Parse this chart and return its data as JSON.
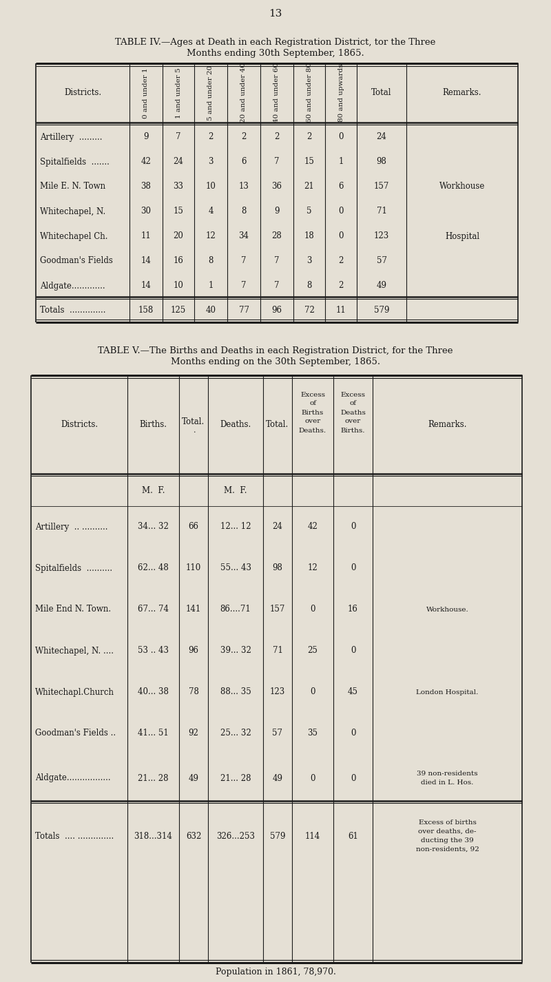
{
  "page_number": "13",
  "bg_color": "#e5e0d5",
  "text_color": "#1a1a1a",
  "table4": {
    "title_line1": "TABLE IV.—Ages at Death in each Registration District, tor the Three",
    "title_line2": "Months ending 30th September, 1865.",
    "col_headers": [
      "Districts.",
      "0 and\nunder 1",
      "1 and\nunder 5",
      "5 and\nunder 20",
      "20 and\nunder 40",
      "40 and\nunder 60",
      "60 and\nunder 80",
      "80 and\nupwards",
      "Total",
      "Remarks."
    ],
    "rows": [
      [
        "Artillery  .........",
        "9",
        "7",
        "2",
        "2",
        "2",
        "2",
        "0",
        "24",
        ""
      ],
      [
        "Spitalfields  .......",
        "42",
        "24",
        "3",
        "6",
        "7",
        "15",
        "1",
        "98",
        ""
      ],
      [
        "Mile E. N. Town",
        "38",
        "33",
        "10",
        "13",
        "36",
        "21",
        "6",
        "157",
        "Workhouse"
      ],
      [
        "Whitechapel, N.",
        "30",
        "15",
        "4",
        "8",
        "9",
        "5",
        "0",
        "71",
        ""
      ],
      [
        "Whitechapel Ch.",
        "11",
        "20",
        "12",
        "34",
        "28",
        "18",
        "0",
        "123",
        "Hospital"
      ],
      [
        "Goodman's Fields",
        "14",
        "16",
        "8",
        "7",
        "7",
        "3",
        "2",
        "57",
        ""
      ],
      [
        "Aldgate.............",
        "14",
        "10",
        "1",
        "7",
        "7",
        "8",
        "2",
        "49",
        ""
      ],
      [
        "Totals  ..............",
        "158",
        "125",
        "40",
        "77",
        "96",
        "72",
        "11",
        "579",
        ""
      ]
    ]
  },
  "table5": {
    "title_line1": "TABLE V.—The Births and Deaths in each Registration District, for the Three",
    "title_line2": "Months ending on the 30th September, 1865.",
    "rows": [
      [
        "Artillery  .. ..........",
        "34... 32",
        "66",
        "12... 12",
        "24",
        "42",
        "0",
        ""
      ],
      [
        "Spitalfields  ..........",
        "62... 48",
        "110",
        "55... 43",
        "98",
        "12",
        "0",
        ""
      ],
      [
        "Mile End N. Town.",
        "67... 74",
        "141",
        "86....71",
        "157",
        "0",
        "16",
        "Workhouse."
      ],
      [
        "Whitechapel, N. ....",
        "53 .. 43",
        "96",
        "39... 32",
        "71",
        "25",
        "0",
        ""
      ],
      [
        "Whitechapl.Church",
        "40... 38",
        "78",
        "88... 35",
        "123",
        "0",
        "45",
        "London Hospital."
      ],
      [
        "Goodman's Fields ..",
        "41... 51",
        "92",
        "25... 32",
        "57",
        "35",
        "0",
        ""
      ],
      [
        "Aldgate.................",
        "21... 28",
        "49",
        "21... 28",
        "49",
        "0",
        "0",
        "39 non-residents\ndied in L. Hos."
      ],
      [
        "Totals  .... ..............",
        "318...314",
        "632",
        "326...253",
        "579",
        "114",
        "61",
        "Excess of births\nover deaths, de-\nducting the 39\nnon-residents, 92"
      ]
    ]
  },
  "footer": "Population in 1861, 78,970."
}
